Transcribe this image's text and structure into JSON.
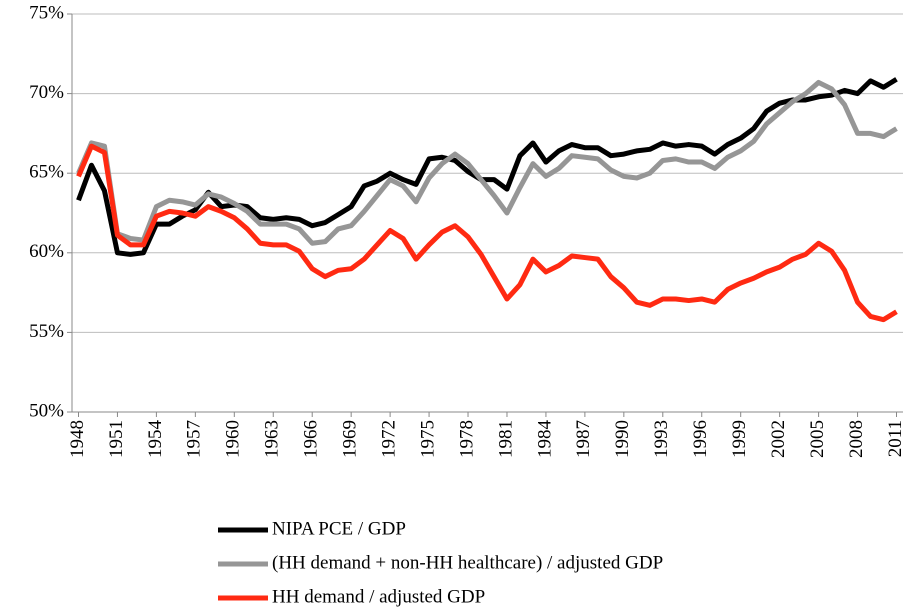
{
  "chart_data": {
    "type": "line",
    "x": [
      1948,
      1949,
      1950,
      1951,
      1952,
      1953,
      1954,
      1955,
      1956,
      1957,
      1958,
      1959,
      1960,
      1961,
      1962,
      1963,
      1964,
      1965,
      1966,
      1967,
      1968,
      1969,
      1970,
      1971,
      1972,
      1973,
      1974,
      1975,
      1976,
      1977,
      1978,
      1979,
      1980,
      1981,
      1982,
      1983,
      1984,
      1985,
      1986,
      1987,
      1988,
      1989,
      1990,
      1991,
      1992,
      1993,
      1994,
      1995,
      1996,
      1997,
      1998,
      1999,
      2000,
      2001,
      2002,
      2003,
      2004,
      2005,
      2006,
      2007,
      2008,
      2009,
      2010,
      2011
    ],
    "series": [
      {
        "name": "NIPA PCE / GDP",
        "color": "#000000",
        "values": [
          63.3,
          65.5,
          63.9,
          60.0,
          59.9,
          60.0,
          61.8,
          61.8,
          62.3,
          62.7,
          63.8,
          62.9,
          63.0,
          62.9,
          62.2,
          62.1,
          62.2,
          62.1,
          61.7,
          61.9,
          62.4,
          62.9,
          64.2,
          64.5,
          65.0,
          64.6,
          64.3,
          65.9,
          66.0,
          65.8,
          65.1,
          64.6,
          64.6,
          64.0,
          66.1,
          66.9,
          65.7,
          66.4,
          66.8,
          66.6,
          66.6,
          66.1,
          66.2,
          66.4,
          66.5,
          66.9,
          66.7,
          66.8,
          66.7,
          66.2,
          66.8,
          67.2,
          67.8,
          68.9,
          69.4,
          69.6,
          69.6,
          69.8,
          69.9,
          70.2,
          70.0,
          70.8,
          70.4,
          70.9
        ]
      },
      {
        "name": "(HH demand + non-HH healthcare) / adjusted GDP",
        "color": "#969696",
        "values": [
          65.0,
          66.9,
          66.7,
          61.2,
          60.9,
          60.8,
          62.9,
          63.3,
          63.2,
          63.0,
          63.7,
          63.5,
          63.1,
          62.6,
          61.8,
          61.8,
          61.8,
          61.5,
          60.6,
          60.7,
          61.5,
          61.7,
          62.6,
          63.6,
          64.6,
          64.2,
          63.2,
          64.7,
          65.6,
          66.2,
          65.6,
          64.6,
          63.6,
          62.5,
          64.1,
          65.6,
          64.8,
          65.3,
          66.1,
          66.0,
          65.9,
          65.2,
          64.8,
          64.7,
          65.0,
          65.8,
          65.9,
          65.7,
          65.7,
          65.3,
          66.0,
          66.4,
          67.0,
          68.1,
          68.8,
          69.5,
          70.0,
          70.7,
          70.3,
          69.3,
          67.5,
          67.5,
          67.3,
          67.8
        ]
      },
      {
        "name": "HH demand / adjusted GDP",
        "color": "#ff2a12",
        "values": [
          64.8,
          66.7,
          66.3,
          61.1,
          60.5,
          60.5,
          62.3,
          62.6,
          62.5,
          62.3,
          62.9,
          62.6,
          62.2,
          61.5,
          60.6,
          60.5,
          60.5,
          60.1,
          59.0,
          58.5,
          58.9,
          59.0,
          59.6,
          60.5,
          61.4,
          60.9,
          59.6,
          60.5,
          61.3,
          61.7,
          61.0,
          59.9,
          58.5,
          57.1,
          58.0,
          59.6,
          58.8,
          59.2,
          59.8,
          59.7,
          59.6,
          58.5,
          57.8,
          56.9,
          56.7,
          57.1,
          57.1,
          57.0,
          57.1,
          56.9,
          57.7,
          58.1,
          58.4,
          58.8,
          59.1,
          59.6,
          59.9,
          60.6,
          60.1,
          58.9,
          56.9,
          56.0,
          55.8,
          56.3
        ]
      }
    ],
    "xlim": [
      1947.5,
      2011.5
    ],
    "xticks": [
      1948,
      1951,
      1954,
      1957,
      1960,
      1963,
      1966,
      1969,
      1972,
      1975,
      1978,
      1981,
      1984,
      1987,
      1990,
      1993,
      1996,
      1999,
      2002,
      2005,
      2008,
      2011
    ],
    "ylim": [
      50,
      75
    ],
    "yticks": [
      {
        "value": 50,
        "label": "50%"
      },
      {
        "value": 55,
        "label": "55%"
      },
      {
        "value": 60,
        "label": "60%"
      },
      {
        "value": 65,
        "label": "65%"
      },
      {
        "value": 70,
        "label": "70%"
      },
      {
        "value": 75,
        "label": "75%"
      }
    ],
    "grid": true,
    "legend": "bottom"
  }
}
